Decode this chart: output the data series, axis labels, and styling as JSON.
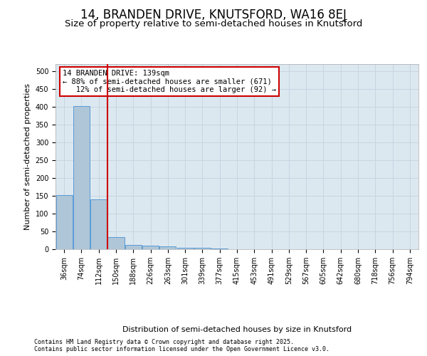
{
  "title_line1": "14, BRANDEN DRIVE, KNUTSFORD, WA16 8EJ",
  "title_line2": "Size of property relative to semi-detached houses in Knutsford",
  "xlabel": "Distribution of semi-detached houses by size in Knutsford",
  "ylabel": "Number of semi-detached properties",
  "footnote": "Contains HM Land Registry data © Crown copyright and database right 2025.\nContains public sector information licensed under the Open Government Licence v3.0.",
  "bar_color": "#aec6d8",
  "bar_edge_color": "#5b9bd5",
  "grid_color": "#c8d4e0",
  "background_color": "#dce8f0",
  "categories": [
    "36sqm",
    "74sqm",
    "112sqm",
    "150sqm",
    "188sqm",
    "226sqm",
    "263sqm",
    "301sqm",
    "339sqm",
    "377sqm",
    "415sqm",
    "453sqm",
    "491sqm",
    "529sqm",
    "567sqm",
    "605sqm",
    "642sqm",
    "680sqm",
    "718sqm",
    "756sqm",
    "794sqm"
  ],
  "values": [
    152,
    402,
    140,
    35,
    12,
    10,
    9,
    5,
    5,
    2,
    0,
    1,
    0,
    0,
    0,
    0,
    0,
    0,
    0,
    0,
    1
  ],
  "ylim": [
    0,
    520
  ],
  "yticks": [
    0,
    50,
    100,
    150,
    200,
    250,
    300,
    350,
    400,
    450,
    500
  ],
  "property_label": "14 BRANDEN DRIVE: 139sqm",
  "pct_smaller": 88,
  "count_smaller": 671,
  "pct_larger": 12,
  "count_larger": 92,
  "vline_x": 2.5,
  "annotation_box_color": "#cc0000",
  "title_fontsize": 12,
  "subtitle_fontsize": 9.5,
  "axis_label_fontsize": 8,
  "tick_fontsize": 7,
  "annotation_fontsize": 7.5,
  "footnote_fontsize": 6
}
